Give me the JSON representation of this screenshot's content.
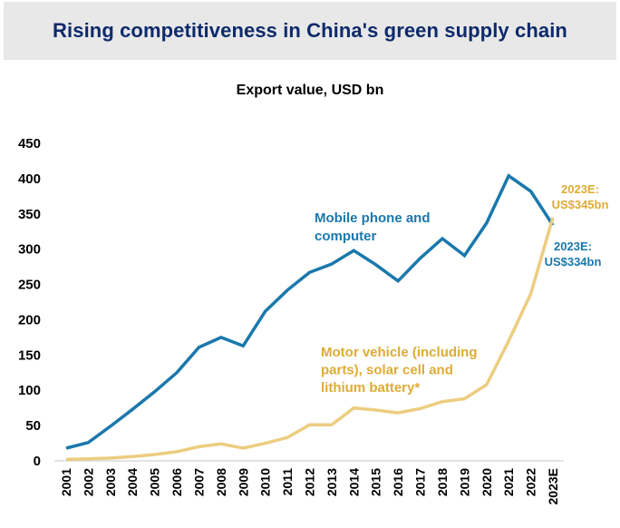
{
  "header": {
    "title": "Rising competitiveness in China's green supply chain"
  },
  "colors": {
    "title": "#0d2a6b",
    "title_band": "#e8e8e8",
    "series_mobile": "#1a78ac",
    "series_green": "#eccd80",
    "label_green": "#e0ab35",
    "axis": "#d4d4d4"
  },
  "chart_data": {
    "type": "line",
    "title": "Export value, USD bn",
    "xlabel": "",
    "ylabel": "",
    "ylim": [
      0,
      450
    ],
    "yticks": [
      0,
      50,
      100,
      150,
      200,
      250,
      300,
      350,
      400,
      450
    ],
    "grid": false,
    "categories": [
      "2001",
      "2002",
      "2003",
      "2004",
      "2005",
      "2006",
      "2007",
      "2008",
      "2009",
      "2010",
      "2011",
      "2012",
      "2013",
      "2014",
      "2015",
      "2016",
      "2017",
      "2018",
      "2019",
      "2020",
      "2021",
      "2022",
      "2023E"
    ],
    "series": [
      {
        "name": "Mobile phone and computer",
        "label_lines": [
          "Mobile phone and",
          "computer"
        ],
        "color": "#1a78ac",
        "values": [
          18,
          26,
          49,
          73,
          98,
          125,
          161,
          175,
          163,
          212,
          242,
          267,
          279,
          298,
          278,
          255,
          287,
          315,
          291,
          337,
          404,
          382,
          334
        ],
        "end_annotation": [
          "2023E:",
          "US$334bn"
        ]
      },
      {
        "name": "Motor vehicle (including parts), solar cell and lithium battery*",
        "label_lines": [
          "Motor vehicle (including",
          "parts), solar cell and",
          "lithium battery*"
        ],
        "color": "#eccd80",
        "label_color": "#e0ab35",
        "values": [
          2,
          3,
          4,
          6,
          9,
          13,
          20,
          24,
          18,
          25,
          33,
          51,
          51,
          75,
          72,
          68,
          74,
          84,
          88,
          108,
          170,
          237,
          345
        ],
        "end_annotation": [
          "2023E:",
          "US$345bn"
        ]
      }
    ]
  }
}
